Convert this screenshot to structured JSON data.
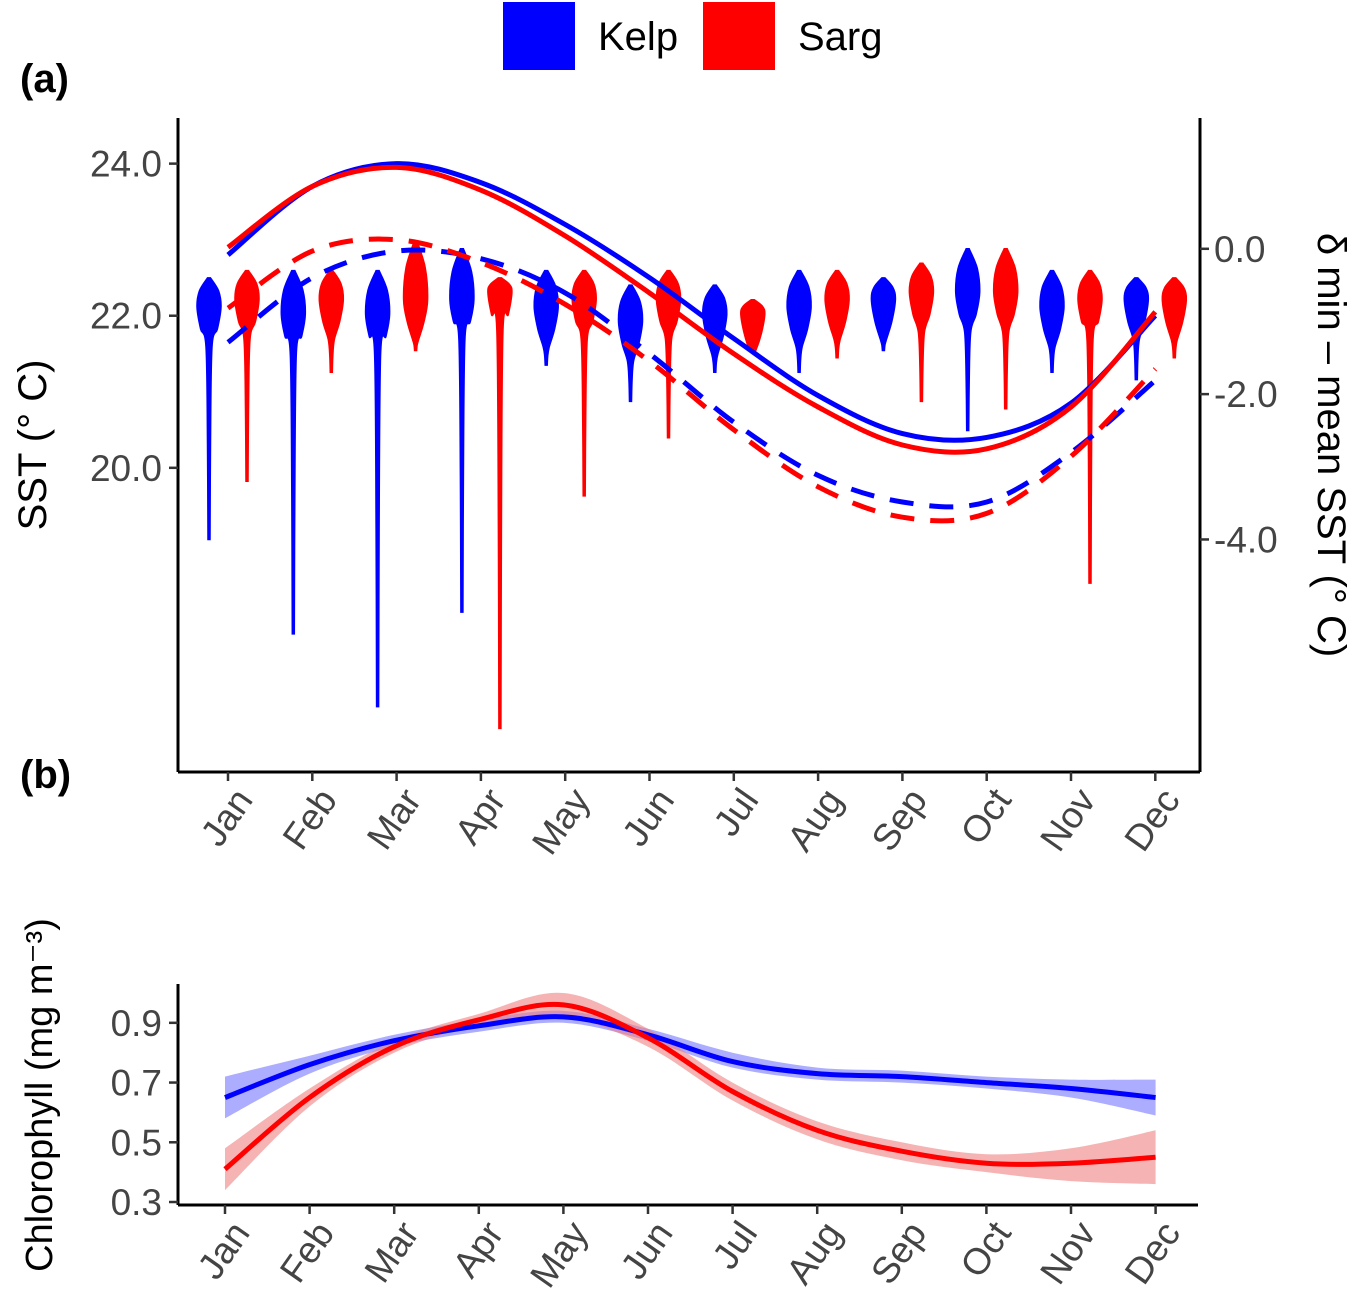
{
  "legend": {
    "placement": "top-center",
    "entries": [
      {
        "label": "Kelp",
        "color": "#0000ff"
      },
      {
        "label": "Sarg",
        "color": "#ff0000"
      }
    ]
  },
  "chart_data": [
    {
      "panel": "(a)",
      "type": "line",
      "ylabel": "SST (° C)",
      "y2label": "δ min – mean SST (° C)",
      "categories": [
        "Jan",
        "Feb",
        "Mar",
        "Apr",
        "May",
        "Jun",
        "Jul",
        "Aug",
        "Sep",
        "Oct",
        "Nov",
        "Dec"
      ],
      "yticks": [
        "20.0",
        "22.0",
        "24.0"
      ],
      "y2ticks": [
        "0.0",
        "-2.0",
        "-4.0"
      ],
      "ylim": [
        16.0,
        24.6
      ],
      "y2lim": [
        -7.2,
        1.8
      ],
      "grid": false,
      "series": [
        {
          "name": "Kelp",
          "color": "#0000ff",
          "dash": false,
          "values": [
            22.8,
            23.7,
            24.0,
            23.75,
            23.2,
            22.5,
            21.7,
            20.95,
            20.45,
            20.4,
            20.85,
            22.0
          ]
        },
        {
          "name": "Sarg",
          "color": "#ff0000",
          "dash": false,
          "values": [
            22.9,
            23.7,
            23.95,
            23.65,
            23.05,
            22.3,
            21.5,
            20.8,
            20.3,
            20.25,
            20.8,
            22.05
          ]
        },
        {
          "name": "Kelp",
          "color": "#0000ff",
          "dash": true,
          "values": [
            21.65,
            22.5,
            22.85,
            22.75,
            22.3,
            21.5,
            20.6,
            19.9,
            19.55,
            19.55,
            20.2,
            21.15
          ]
        },
        {
          "name": "Sarg",
          "color": "#ff0000",
          "dash": true,
          "values": [
            22.1,
            22.85,
            23.0,
            22.7,
            22.15,
            21.4,
            20.5,
            19.75,
            19.35,
            19.4,
            20.15,
            21.3
          ]
        }
      ],
      "violins": {
        "type": "violin",
        "axis": "y2",
        "series": [
          {
            "name": "Kelp",
            "color": "#0000ff",
            "min": [
              -4.0,
              -5.3,
              -6.3,
              -5.0,
              -1.6,
              -2.1,
              -1.7,
              -1.7,
              -1.4,
              -2.5,
              -1.7,
              -1.8
            ],
            "max": [
              -0.4,
              -0.3,
              -0.3,
              0.0,
              -0.3,
              -0.5,
              -0.5,
              -0.3,
              -0.4,
              0.0,
              -0.3,
              -0.4
            ],
            "mode": [
              -0.8,
              -0.9,
              -0.9,
              -0.7,
              -0.8,
              -1.0,
              -0.9,
              -0.8,
              -0.7,
              -0.6,
              -0.8,
              -0.7
            ]
          },
          {
            "name": "Sarg",
            "color": "#ff0000",
            "min": [
              -3.2,
              -1.7,
              -1.4,
              -6.6,
              -3.4,
              -2.6,
              -1.4,
              -1.5,
              -2.1,
              -2.2,
              -4.6,
              -1.5
            ],
            "max": [
              -0.3,
              -0.3,
              0.1,
              -0.4,
              -0.3,
              -0.3,
              -0.7,
              -0.3,
              -0.2,
              0.0,
              -0.3,
              -0.4
            ],
            "mode": [
              -0.7,
              -0.7,
              -0.7,
              -0.6,
              -0.7,
              -0.7,
              -0.9,
              -0.7,
              -0.6,
              -0.6,
              -0.7,
              -0.7
            ]
          }
        ]
      }
    },
    {
      "panel": "(b)",
      "type": "line",
      "ylabel": "Chlorophyll (mg m⁻³)",
      "categories": [
        "Jan",
        "Feb",
        "Mar",
        "Apr",
        "May",
        "Jun",
        "Jul",
        "Aug",
        "Sep",
        "Oct",
        "Nov",
        "Dec"
      ],
      "yticks": [
        "0.3",
        "0.5",
        "0.7",
        "0.9"
      ],
      "ylim": [
        0.29,
        1.03
      ],
      "grid": false,
      "series": [
        {
          "name": "Kelp",
          "color": "#0000ff",
          "band_color": "#7777ff",
          "values": [
            0.65,
            0.76,
            0.84,
            0.89,
            0.92,
            0.86,
            0.77,
            0.73,
            0.72,
            0.7,
            0.68,
            0.65
          ],
          "lower": [
            0.58,
            0.73,
            0.82,
            0.87,
            0.9,
            0.84,
            0.75,
            0.71,
            0.7,
            0.68,
            0.65,
            0.59
          ],
          "upper": [
            0.72,
            0.79,
            0.86,
            0.91,
            0.94,
            0.88,
            0.8,
            0.75,
            0.74,
            0.72,
            0.71,
            0.71
          ]
        },
        {
          "name": "Sarg",
          "color": "#ff0000",
          "band_color": "#f08080",
          "values": [
            0.41,
            0.65,
            0.82,
            0.91,
            0.96,
            0.85,
            0.67,
            0.54,
            0.47,
            0.43,
            0.43,
            0.45
          ],
          "lower": [
            0.34,
            0.62,
            0.8,
            0.89,
            0.92,
            0.82,
            0.64,
            0.51,
            0.44,
            0.4,
            0.37,
            0.36
          ],
          "upper": [
            0.48,
            0.68,
            0.84,
            0.93,
            1.0,
            0.88,
            0.7,
            0.57,
            0.5,
            0.46,
            0.48,
            0.54
          ]
        }
      ]
    }
  ]
}
